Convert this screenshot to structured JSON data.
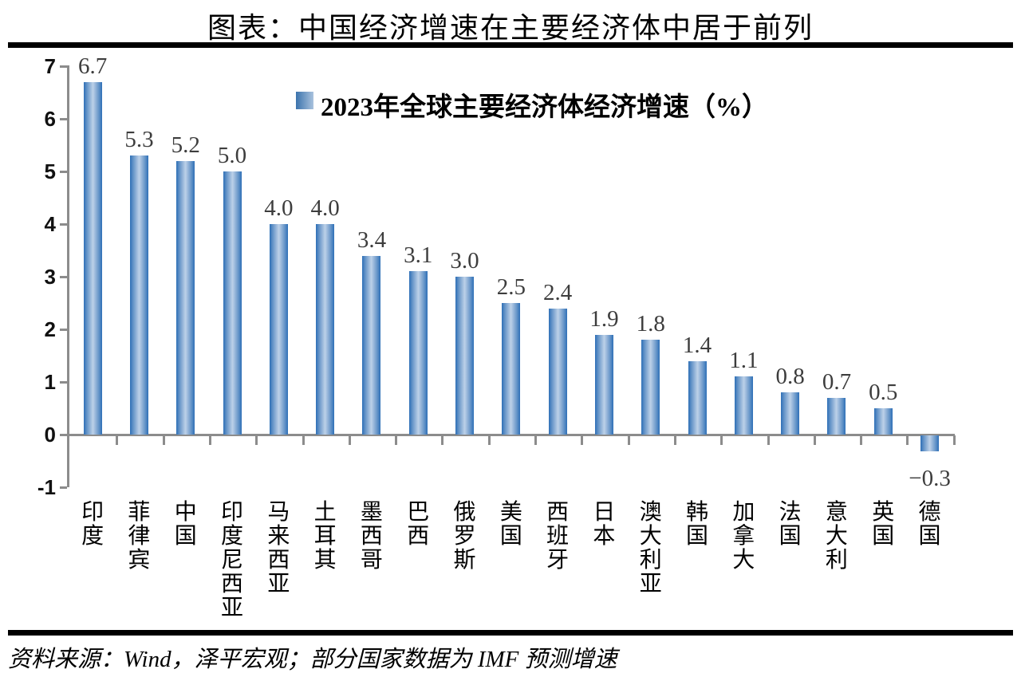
{
  "page": {
    "title": "图表：中国经济增速在主要经济体中居于前列",
    "source_note": "资料来源：Wind，泽平宏观；部分国家数据为 IMF 预测增速"
  },
  "chart_data": {
    "type": "bar",
    "title": "图表：中国经济增速在主要经济体中居于前列",
    "legend_label": "2023年全球主要经济体经济增速（%）",
    "legend_position": "top-center",
    "categories": [
      "印度",
      "菲律宾",
      "中国",
      "印度尼西亚",
      "马来西亚",
      "土耳其",
      "墨西哥",
      "巴西",
      "俄罗斯",
      "美国",
      "西班牙",
      "日本",
      "澳大利亚",
      "韩国",
      "加拿大",
      "法国",
      "意大利",
      "英国",
      "德国"
    ],
    "values": [
      6.7,
      5.3,
      5.2,
      5.0,
      4.0,
      4.0,
      3.4,
      3.1,
      3.0,
      2.5,
      2.4,
      1.9,
      1.8,
      1.4,
      1.1,
      0.8,
      0.7,
      0.5,
      -0.3
    ],
    "value_labels": [
      "6.7",
      "5.3",
      "5.2",
      "5.0",
      "4.0",
      "4.0",
      "3.4",
      "3.1",
      "3.0",
      "2.5",
      "2.4",
      "1.9",
      "1.8",
      "1.4",
      "1.1",
      "0.8",
      "0.7",
      "0.5",
      "−0.3"
    ],
    "xlabel": "",
    "ylabel": "",
    "ylim": [
      -1,
      7
    ],
    "yticks": [
      7,
      6,
      5,
      4,
      3,
      2,
      1,
      0,
      -1
    ],
    "grid": false,
    "colors": {
      "bar_edge": "#2e6fb7",
      "bar_center": "#bdd1e8",
      "axis": "#8c8c8c",
      "value_label": "#3d3d3d",
      "text": "#000000"
    }
  }
}
